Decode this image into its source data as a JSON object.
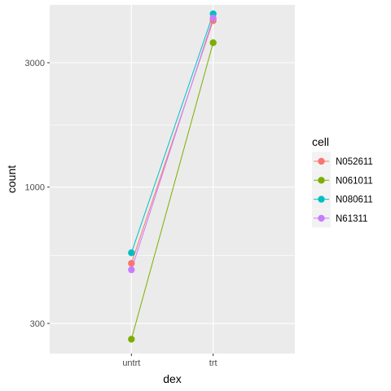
{
  "chart_data": {
    "type": "line",
    "xlabel": "dex",
    "ylabel": "count",
    "categories": [
      "untrt",
      "trt"
    ],
    "y_scale": "log10",
    "ylim": [
      230,
      5000
    ],
    "yticks": [
      300,
      1000,
      3000
    ],
    "ytick_labels": [
      "300",
      "1000",
      "3000"
    ],
    "grid": true,
    "legend_title": "cell",
    "legend_position": "right",
    "series": [
      {
        "name": "N052611",
        "color": "#F8766D",
        "values": [
          510,
          4350
        ]
      },
      {
        "name": "N061011",
        "color": "#7CAE00",
        "values": [
          261,
          3580
        ]
      },
      {
        "name": "N080611",
        "color": "#00BFC4",
        "values": [
          560,
          4620
        ]
      },
      {
        "name": "N61311",
        "color": "#C77CFF",
        "values": [
          482,
          4450
        ]
      }
    ]
  }
}
